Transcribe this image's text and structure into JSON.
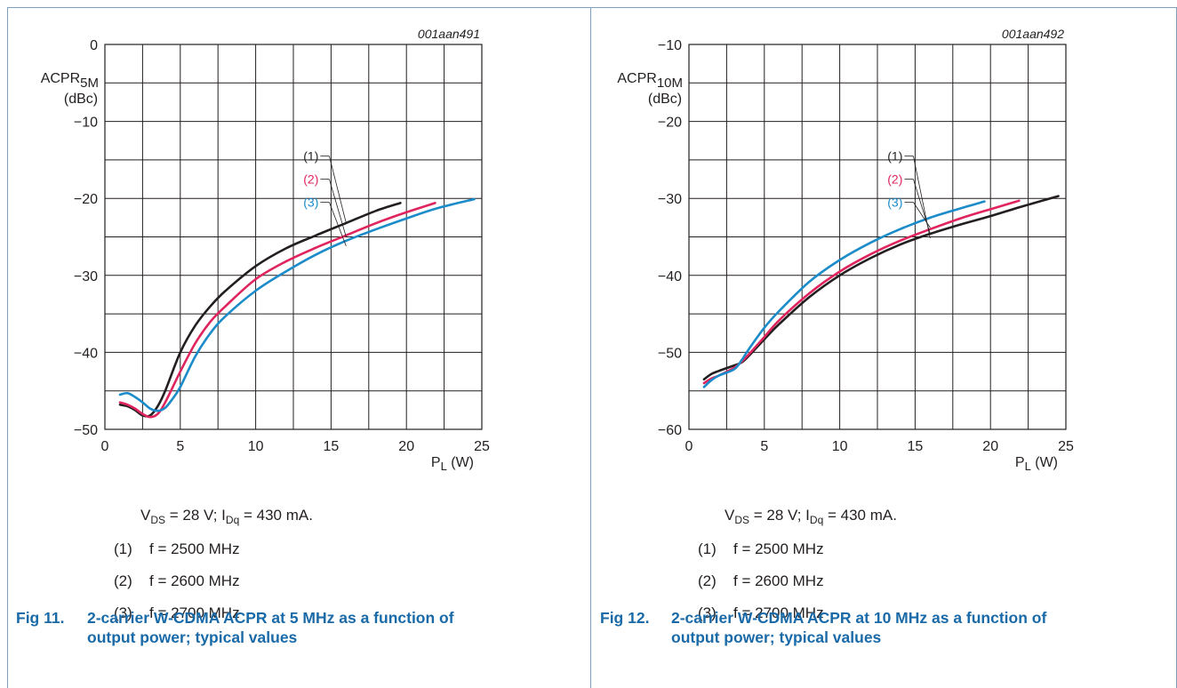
{
  "chart_data": [
    {
      "type": "line",
      "figure_id": "001aan491",
      "ylabel": "ACPR",
      "ylabel_sub": "5M",
      "yunit": "(dBc)",
      "xlabel": "P",
      "xlabel_sub": "L",
      "xunit": "(W)",
      "xlim": [
        0,
        25
      ],
      "ylim": [
        -50,
        0
      ],
      "xticks": [
        0,
        5,
        10,
        15,
        20,
        25
      ],
      "yticks": [
        0,
        -10,
        -20,
        -30,
        -40,
        -50
      ],
      "grid": true,
      "series": [
        {
          "name": "(1)",
          "color": "#231f20",
          "x": [
            1,
            1.5,
            2,
            2.5,
            3,
            3.5,
            4,
            5,
            6,
            7,
            8,
            10,
            12,
            14,
            16,
            18,
            19.6
          ],
          "y": [
            -46.8,
            -47.0,
            -47.5,
            -48.2,
            -48.2,
            -47.0,
            -45.0,
            -40.0,
            -36.5,
            -34.0,
            -32.0,
            -28.8,
            -26.5,
            -24.8,
            -23.2,
            -21.6,
            -20.6
          ]
        },
        {
          "name": "(2)",
          "color": "#e0245e",
          "x": [
            1,
            1.5,
            2,
            2.5,
            3,
            3.5,
            4,
            5,
            6,
            7,
            8,
            10,
            12,
            14,
            16,
            18,
            20,
            21.9
          ],
          "y": [
            -46.5,
            -46.8,
            -47.3,
            -48.0,
            -48.4,
            -48.0,
            -46.5,
            -42.5,
            -38.8,
            -36.0,
            -34.0,
            -30.5,
            -28.2,
            -26.4,
            -24.8,
            -23.2,
            -21.8,
            -20.6
          ]
        },
        {
          "name": "(3)",
          "color": "#1b8bc9",
          "x": [
            1,
            1.5,
            2,
            2.5,
            3,
            3.5,
            4,
            4.5,
            5,
            6,
            7,
            8,
            10,
            12,
            14,
            16,
            18,
            20,
            22,
            24.5
          ],
          "y": [
            -45.5,
            -45.3,
            -45.8,
            -46.5,
            -47.3,
            -47.6,
            -47.2,
            -46.0,
            -44.5,
            -40.5,
            -37.5,
            -35.3,
            -32.0,
            -29.5,
            -27.3,
            -25.5,
            -24.0,
            -22.6,
            -21.3,
            -20.1
          ]
        }
      ],
      "label_x": 15,
      "label_y": [
        -14.5,
        -17.5,
        -20.5
      ],
      "pointer_end_y": [
        -23.2,
        -25.0,
        -26.2
      ]
    },
    {
      "type": "line",
      "figure_id": "001aan492",
      "ylabel": "ACPR",
      "ylabel_sub": "10M",
      "yunit": "(dBc)",
      "xlabel": "P",
      "xlabel_sub": "L",
      "xunit": "(W)",
      "xlim": [
        0,
        25
      ],
      "ylim": [
        -60,
        -10
      ],
      "xticks": [
        0,
        5,
        10,
        15,
        20,
        25
      ],
      "yticks": [
        -10,
        -20,
        -30,
        -40,
        -50,
        -60
      ],
      "grid": true,
      "series": [
        {
          "name": "(1)",
          "color": "#231f20",
          "x": [
            1,
            1.5,
            2,
            3,
            3.5,
            4,
            5,
            6,
            8,
            10,
            12,
            14,
            16,
            18,
            20,
            22,
            24.5
          ],
          "y": [
            -53.5,
            -52.8,
            -52.4,
            -51.7,
            -51.3,
            -50.4,
            -48.3,
            -46.3,
            -42.8,
            -40.0,
            -37.8,
            -36.0,
            -34.6,
            -33.4,
            -32.3,
            -31.1,
            -29.7
          ]
        },
        {
          "name": "(2)",
          "color": "#e0245e",
          "x": [
            1,
            1.5,
            2,
            3,
            3.5,
            4,
            5,
            6,
            8,
            10,
            12,
            14,
            16,
            18,
            20,
            21.9
          ],
          "y": [
            -54.0,
            -53.4,
            -53.0,
            -52.0,
            -51.2,
            -50.2,
            -48.0,
            -45.8,
            -42.3,
            -39.5,
            -37.3,
            -35.5,
            -34.0,
            -32.6,
            -31.4,
            -30.3
          ]
        },
        {
          "name": "(3)",
          "color": "#1b8bc9",
          "x": [
            1,
            1.5,
            2,
            3,
            3.5,
            4,
            5,
            6,
            8,
            10,
            12,
            14,
            16,
            18,
            19.6
          ],
          "y": [
            -54.5,
            -53.6,
            -53.0,
            -52.2,
            -51.0,
            -49.5,
            -46.8,
            -44.6,
            -40.8,
            -38.0,
            -35.8,
            -34.0,
            -32.5,
            -31.3,
            -30.4
          ]
        }
      ],
      "label_x": 15,
      "label_y": [
        -24.5,
        -27.5,
        -30.5
      ],
      "pointer_end_y": [
        -35.2,
        -34.6,
        -33.8
      ]
    }
  ],
  "panels": [
    {
      "conditions": {
        "v": "V",
        "v_sub": "DS",
        "v_rest": " = 28 V; I",
        "i_sub": "Dq",
        "i_rest": " = 430 mA."
      },
      "legend": [
        {
          "num": "(1)",
          "text": "f = 2500 MHz"
        },
        {
          "num": "(2)",
          "text": "f = 2600 MHz"
        },
        {
          "num": "(3)",
          "text": "f = 2700 MHz"
        }
      ],
      "caption": {
        "fig": "Fig 11.",
        "text": "2-carrier W-CDMA ACPR at 5 MHz as a function of output power; typical values"
      }
    },
    {
      "conditions": {
        "v": "V",
        "v_sub": "DS",
        "v_rest": " = 28 V; I",
        "i_sub": "Dq",
        "i_rest": " = 430 mA."
      },
      "legend": [
        {
          "num": "(1)",
          "text": "f = 2500 MHz"
        },
        {
          "num": "(2)",
          "text": "f = 2600 MHz"
        },
        {
          "num": "(3)",
          "text": "f = 2700 MHz"
        }
      ],
      "caption": {
        "fig": "Fig 12.",
        "text": "2-carrier W-CDMA ACPR at 10 MHz as a function of output power; typical values"
      }
    }
  ]
}
